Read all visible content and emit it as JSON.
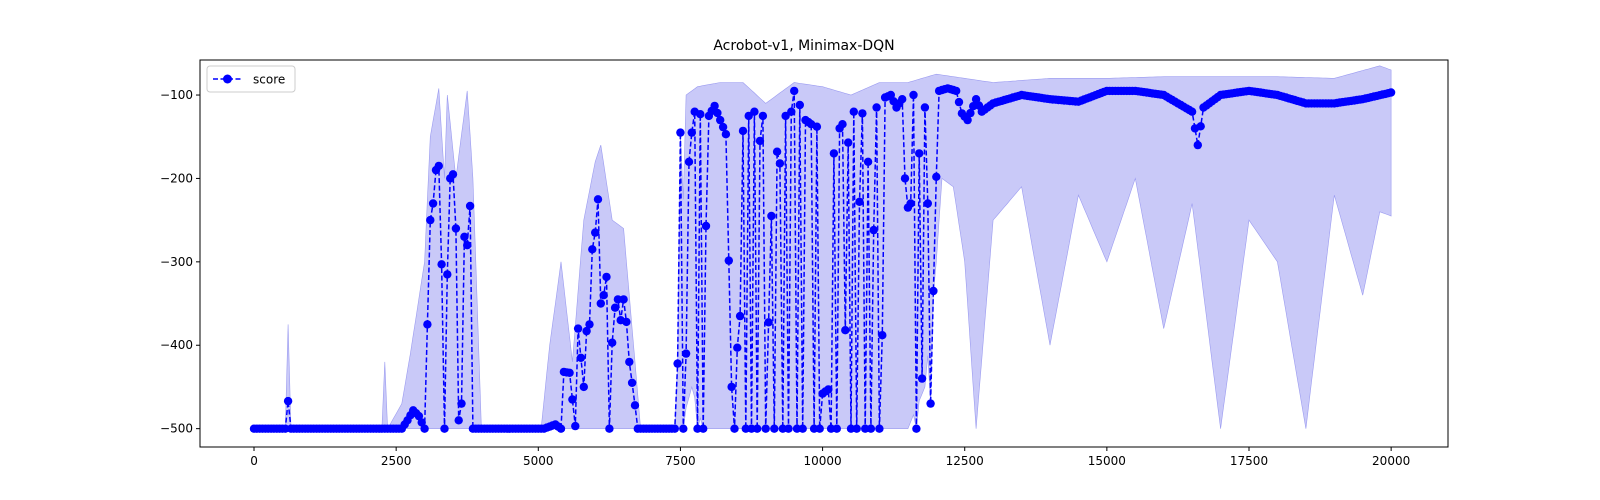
{
  "chart_data": {
    "type": "line",
    "title": "Acrobot-v1, Minimax-DQN",
    "xlabel": "",
    "ylabel": "",
    "xlim": [
      -950,
      21000
    ],
    "ylim": [
      -522,
      -58
    ],
    "xticks": [
      0,
      2500,
      5000,
      7500,
      10000,
      12500,
      15000,
      17500,
      20000
    ],
    "xtick_labels": [
      "0",
      "2500",
      "5000",
      "7500",
      "10000",
      "12500",
      "15000",
      "17500",
      "20000"
    ],
    "yticks": [
      -500,
      -400,
      -300,
      -200,
      -100
    ],
    "ytick_labels": [
      "−500",
      "−400",
      "−300",
      "−200",
      "−100"
    ],
    "grid": false,
    "legend": {
      "position": "top-left",
      "entries": [
        "score"
      ]
    },
    "colors": {
      "line": "#0000ff",
      "band": "#bfbff7"
    },
    "series": [
      {
        "name": "score",
        "style": "dashed line with circle markers",
        "x_step": 50,
        "x_start": 0,
        "key_points": [
          [
            0,
            -500
          ],
          [
            550,
            -500
          ],
          [
            600,
            -467
          ],
          [
            650,
            -500
          ],
          [
            2600,
            -500
          ],
          [
            2700,
            -490
          ],
          [
            2800,
            -478
          ],
          [
            2900,
            -485
          ],
          [
            3000,
            -500
          ],
          [
            3100,
            -250
          ],
          [
            3150,
            -230
          ],
          [
            3200,
            -190
          ],
          [
            3250,
            -185
          ],
          [
            3300,
            -303
          ],
          [
            3350,
            -500
          ],
          [
            3400,
            -315
          ],
          [
            3450,
            -200
          ],
          [
            3500,
            -195
          ],
          [
            3550,
            -260
          ],
          [
            3600,
            -490
          ],
          [
            3650,
            -470
          ],
          [
            3700,
            -270
          ],
          [
            3750,
            -280
          ],
          [
            3800,
            -233
          ],
          [
            3850,
            -500
          ],
          [
            5100,
            -500
          ],
          [
            5300,
            -495
          ],
          [
            5400,
            -500
          ],
          [
            5450,
            -432
          ],
          [
            5550,
            -433
          ],
          [
            5650,
            -497
          ],
          [
            5700,
            -380
          ],
          [
            5800,
            -450
          ],
          [
            5850,
            -383
          ],
          [
            5900,
            -375
          ],
          [
            5950,
            -285
          ],
          [
            6000,
            -265
          ],
          [
            6050,
            -225
          ],
          [
            6100,
            -350
          ],
          [
            6150,
            -340
          ],
          [
            6200,
            -318
          ],
          [
            6250,
            -500
          ],
          [
            6300,
            -397
          ],
          [
            6350,
            -355
          ],
          [
            6400,
            -345
          ],
          [
            6450,
            -370
          ],
          [
            6500,
            -345
          ],
          [
            6550,
            -372
          ],
          [
            6600,
            -420
          ],
          [
            6650,
            -445
          ],
          [
            6700,
            -472
          ],
          [
            6750,
            -500
          ],
          [
            7400,
            -500
          ],
          [
            7450,
            -422
          ],
          [
            7500,
            -145
          ],
          [
            7550,
            -500
          ],
          [
            7600,
            -410
          ],
          [
            7650,
            -180
          ],
          [
            7700,
            -145
          ],
          [
            7750,
            -120
          ],
          [
            7800,
            -500
          ],
          [
            7850,
            -123
          ],
          [
            7900,
            -500
          ],
          [
            7950,
            -257
          ],
          [
            8000,
            -125
          ],
          [
            8100,
            -113
          ],
          [
            8200,
            -130
          ],
          [
            8300,
            -147
          ],
          [
            8400,
            -450
          ],
          [
            8450,
            -500
          ],
          [
            8500,
            -403
          ],
          [
            8550,
            -365
          ],
          [
            8600,
            -143
          ],
          [
            8650,
            -500
          ],
          [
            8700,
            -125
          ],
          [
            8750,
            -500
          ],
          [
            8800,
            -120
          ],
          [
            8850,
            -500
          ],
          [
            8900,
            -155
          ],
          [
            8950,
            -125
          ],
          [
            9000,
            -500
          ],
          [
            9100,
            -245
          ],
          [
            9150,
            -500
          ],
          [
            9200,
            -168
          ],
          [
            9250,
            -182
          ],
          [
            9300,
            -500
          ],
          [
            9350,
            -125
          ],
          [
            9400,
            -500
          ],
          [
            9450,
            -120
          ],
          [
            9500,
            -95
          ],
          [
            9550,
            -500
          ],
          [
            9600,
            -112
          ],
          [
            9650,
            -500
          ],
          [
            9700,
            -130
          ],
          [
            9800,
            -135
          ],
          [
            9850,
            -500
          ],
          [
            9900,
            -138
          ],
          [
            9950,
            -500
          ],
          [
            10000,
            -458
          ],
          [
            10100,
            -453
          ],
          [
            10150,
            -500
          ],
          [
            10200,
            -170
          ],
          [
            10250,
            -500
          ],
          [
            10300,
            -140
          ],
          [
            10350,
            -135
          ],
          [
            10400,
            -382
          ],
          [
            10450,
            -157
          ],
          [
            10500,
            -500
          ],
          [
            10550,
            -120
          ],
          [
            10600,
            -500
          ],
          [
            10650,
            -228
          ],
          [
            10700,
            -122
          ],
          [
            10750,
            -500
          ],
          [
            10800,
            -180
          ],
          [
            10850,
            -500
          ],
          [
            10900,
            -262
          ],
          [
            10950,
            -115
          ],
          [
            11000,
            -500
          ],
          [
            11050,
            -388
          ],
          [
            11100,
            -103
          ],
          [
            11200,
            -100
          ],
          [
            11300,
            -115
          ],
          [
            11400,
            -105
          ],
          [
            11450,
            -200
          ],
          [
            11500,
            -235
          ],
          [
            11550,
            -230
          ],
          [
            11600,
            -100
          ],
          [
            11650,
            -500
          ],
          [
            11700,
            -170
          ],
          [
            11750,
            -440
          ],
          [
            11800,
            -115
          ],
          [
            11850,
            -230
          ],
          [
            11900,
            -470
          ],
          [
            11950,
            -335
          ],
          [
            12000,
            -198
          ],
          [
            12050,
            -95
          ],
          [
            12200,
            -92
          ],
          [
            12350,
            -95
          ],
          [
            12450,
            -122
          ],
          [
            12550,
            -130
          ],
          [
            12700,
            -105
          ],
          [
            12800,
            -120
          ],
          [
            13000,
            -110
          ],
          [
            13500,
            -100
          ],
          [
            14000,
            -105
          ],
          [
            14500,
            -108
          ],
          [
            15000,
            -95
          ],
          [
            15500,
            -95
          ],
          [
            16000,
            -100
          ],
          [
            16500,
            -120
          ],
          [
            16600,
            -160
          ],
          [
            16700,
            -115
          ],
          [
            17000,
            -100
          ],
          [
            17500,
            -95
          ],
          [
            18000,
            -100
          ],
          [
            18500,
            -110
          ],
          [
            19000,
            -110
          ],
          [
            19500,
            -105
          ],
          [
            20000,
            -97
          ]
        ],
        "band": {
          "description": "shaded min/max band around score",
          "upper_key_points": [
            [
              0,
              -500
            ],
            [
              550,
              -500
            ],
            [
              600,
              -375
            ],
            [
              650,
              -500
            ],
            [
              2250,
              -500
            ],
            [
              2300,
              -420
            ],
            [
              2350,
              -500
            ],
            [
              2600,
              -470
            ],
            [
              2750,
              -410
            ],
            [
              3000,
              -300
            ],
            [
              3100,
              -150
            ],
            [
              3250,
              -92
            ],
            [
              3350,
              -200
            ],
            [
              3400,
              -100
            ],
            [
              3550,
              -200
            ],
            [
              3750,
              -95
            ],
            [
              3850,
              -200
            ],
            [
              4000,
              -500
            ],
            [
              5050,
              -500
            ],
            [
              5200,
              -400
            ],
            [
              5400,
              -300
            ],
            [
              5600,
              -420
            ],
            [
              5800,
              -250
            ],
            [
              6000,
              -180
            ],
            [
              6100,
              -160
            ],
            [
              6300,
              -250
            ],
            [
              6500,
              -260
            ],
            [
              6700,
              -420
            ],
            [
              6800,
              -500
            ],
            [
              7450,
              -500
            ],
            [
              7500,
              -350
            ],
            [
              7600,
              -100
            ],
            [
              7800,
              -90
            ],
            [
              8200,
              -85
            ],
            [
              8600,
              -85
            ],
            [
              9000,
              -110
            ],
            [
              9500,
              -85
            ],
            [
              10000,
              -90
            ],
            [
              10500,
              -100
            ],
            [
              11000,
              -85
            ],
            [
              11500,
              -85
            ],
            [
              12000,
              -75
            ],
            [
              12500,
              -80
            ],
            [
              13000,
              -85
            ],
            [
              14000,
              -80
            ],
            [
              15000,
              -80
            ],
            [
              16000,
              -78
            ],
            [
              17000,
              -78
            ],
            [
              18000,
              -78
            ],
            [
              19000,
              -80
            ],
            [
              19800,
              -65
            ],
            [
              20000,
              -70
            ]
          ],
          "lower_key_points": [
            [
              0,
              -500
            ],
            [
              7500,
              -500
            ],
            [
              7700,
              -450
            ],
            [
              7900,
              -500
            ],
            [
              8600,
              -500
            ],
            [
              9600,
              -500
            ],
            [
              10600,
              -500
            ],
            [
              11000,
              -500
            ],
            [
              11500,
              -500
            ],
            [
              11800,
              -450
            ],
            [
              12000,
              -300
            ],
            [
              12100,
              -200
            ],
            [
              12300,
              -210
            ],
            [
              12500,
              -300
            ],
            [
              12700,
              -500
            ],
            [
              13000,
              -250
            ],
            [
              13500,
              -210
            ],
            [
              14000,
              -400
            ],
            [
              14500,
              -220
            ],
            [
              15000,
              -300
            ],
            [
              15500,
              -200
            ],
            [
              16000,
              -380
            ],
            [
              16500,
              -230
            ],
            [
              17000,
              -500
            ],
            [
              17500,
              -250
            ],
            [
              18000,
              -300
            ],
            [
              18500,
              -500
            ],
            [
              19000,
              -220
            ],
            [
              19500,
              -340
            ],
            [
              19800,
              -240
            ],
            [
              20000,
              -245
            ]
          ]
        }
      }
    ]
  }
}
